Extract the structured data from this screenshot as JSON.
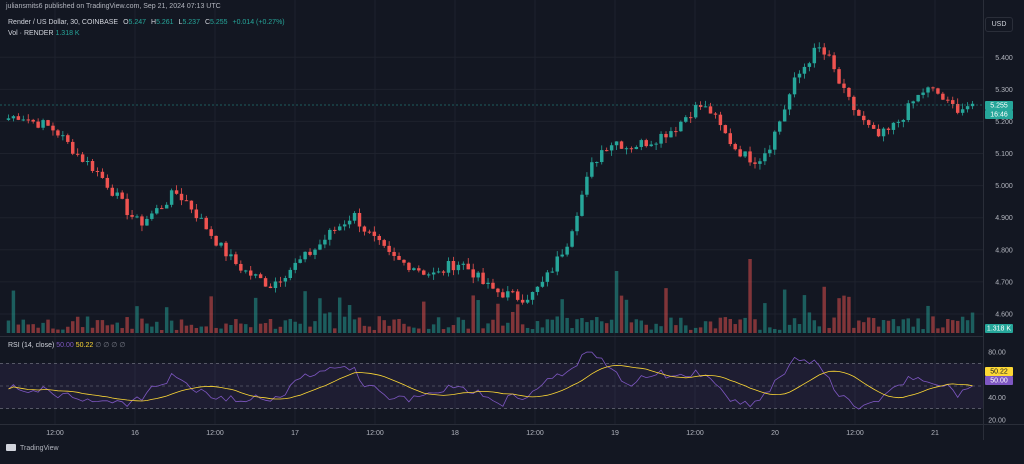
{
  "header": {
    "published": "juliansmits6 published on TradingView.com, Sep 21, 2024 07:13 UTC"
  },
  "legend": {
    "symbol": "Render / US Dollar, 30, COINBASE",
    "o_label": "O",
    "o": "5.247",
    "h_label": "H",
    "h": "5.261",
    "l_label": "L",
    "l": "5.237",
    "c_label": "C",
    "c": "5.255",
    "change": "+0.014 (+0.27%)",
    "vol_label": "Vol · RENDER",
    "vol_value": "1.318 K"
  },
  "currency_button": "USD",
  "price_axis": {
    "ticks": [
      "5.400",
      "5.300",
      "5.200",
      "5.100",
      "5.000",
      "4.900",
      "4.800",
      "4.700",
      "4.600"
    ],
    "last_price": "5.255",
    "countdown": "16:46",
    "volume_badge": "1.318 K"
  },
  "rsi": {
    "label": "RSI (14, close)",
    "value": "50.00",
    "ma_value": "50.22",
    "extra": "∅ ∅ ∅ ∅",
    "ticks": [
      "80.00",
      "60.00",
      "40.00",
      "20.00"
    ],
    "badge_ma": "50.22",
    "badge_rsi": "50.00"
  },
  "time_axis": {
    "labels": [
      "12:00",
      "16",
      "12:00",
      "17",
      "12:00",
      "18",
      "12:00",
      "19",
      "12:00",
      "20",
      "12:00",
      "21"
    ]
  },
  "footer": {
    "brand": "TradingView"
  },
  "colors": {
    "background": "#131722",
    "up": "#26a69a",
    "down": "#ef5350",
    "rsi_line": "#7e57c2",
    "rsi_ma": "#fdd835",
    "grid": "#1e222d"
  },
  "chart_data": {
    "type": "candlestick",
    "ylim": [
      4.55,
      5.46
    ],
    "rsi_ylim": [
      20,
      80
    ],
    "close_path": [
      5.21,
      5.22,
      5.2,
      5.19,
      5.17,
      5.13,
      5.09,
      5.06,
      5.02,
      4.97,
      4.92,
      4.88,
      4.91,
      4.94,
      4.98,
      4.95,
      4.9,
      4.85,
      4.8,
      4.76,
      4.73,
      4.71,
      4.69,
      4.72,
      4.75,
      4.78,
      4.81,
      4.85,
      4.88,
      4.91,
      4.86,
      4.82,
      4.78,
      4.76,
      4.75,
      4.73,
      4.72,
      4.75,
      4.76,
      4.73,
      4.69,
      4.67,
      4.66,
      4.65,
      4.66,
      4.7,
      4.76,
      4.83,
      4.95,
      5.06,
      5.12,
      5.14,
      5.12,
      5.13,
      5.14,
      5.16,
      5.18,
      5.22,
      5.25,
      5.23,
      5.17,
      5.12,
      5.09,
      5.08,
      5.13,
      5.22,
      5.32,
      5.38,
      5.43,
      5.39,
      5.3,
      5.24,
      5.19,
      5.15,
      5.17,
      5.21,
      5.26,
      5.3,
      5.29,
      5.25,
      5.24,
      5.255
    ]
  }
}
